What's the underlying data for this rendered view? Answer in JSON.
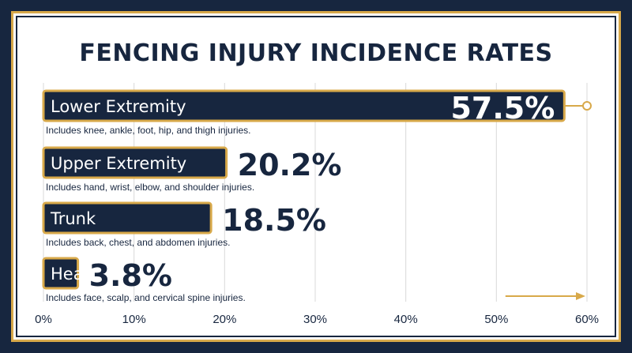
{
  "chart_data": {
    "type": "bar",
    "orientation": "horizontal",
    "title": "FENCING INJURY INCIDENCE RATES",
    "categories": [
      "Lower Extremity",
      "Upper Extremity",
      "Trunk",
      "Head/Neck"
    ],
    "values": [
      57.5,
      20.2,
      18.5,
      3.8
    ],
    "value_labels": [
      "57.5%",
      "20.2%",
      "18.5%",
      "3.8%"
    ],
    "descriptions": [
      "Includes knee, ankle, foot, hip, and thigh injuries.",
      "Includes hand, wrist, elbow, and shoulder injuries.",
      "Includes back, chest, and abdomen injuries.",
      "Includes face, scalp, and cervical spine injuries."
    ],
    "xlim": [
      0,
      60
    ],
    "x_ticks": [
      0,
      10,
      20,
      30,
      40,
      50,
      60
    ],
    "x_tick_labels": [
      "0%",
      "10%",
      "20%",
      "30%",
      "40%",
      "50%",
      "60%"
    ],
    "grid": true,
    "colors": {
      "bar": "#17263f",
      "accent": "#d8a94a",
      "text": "#17263f",
      "grid": "#d9d9d9",
      "background": "#ffffff"
    }
  }
}
